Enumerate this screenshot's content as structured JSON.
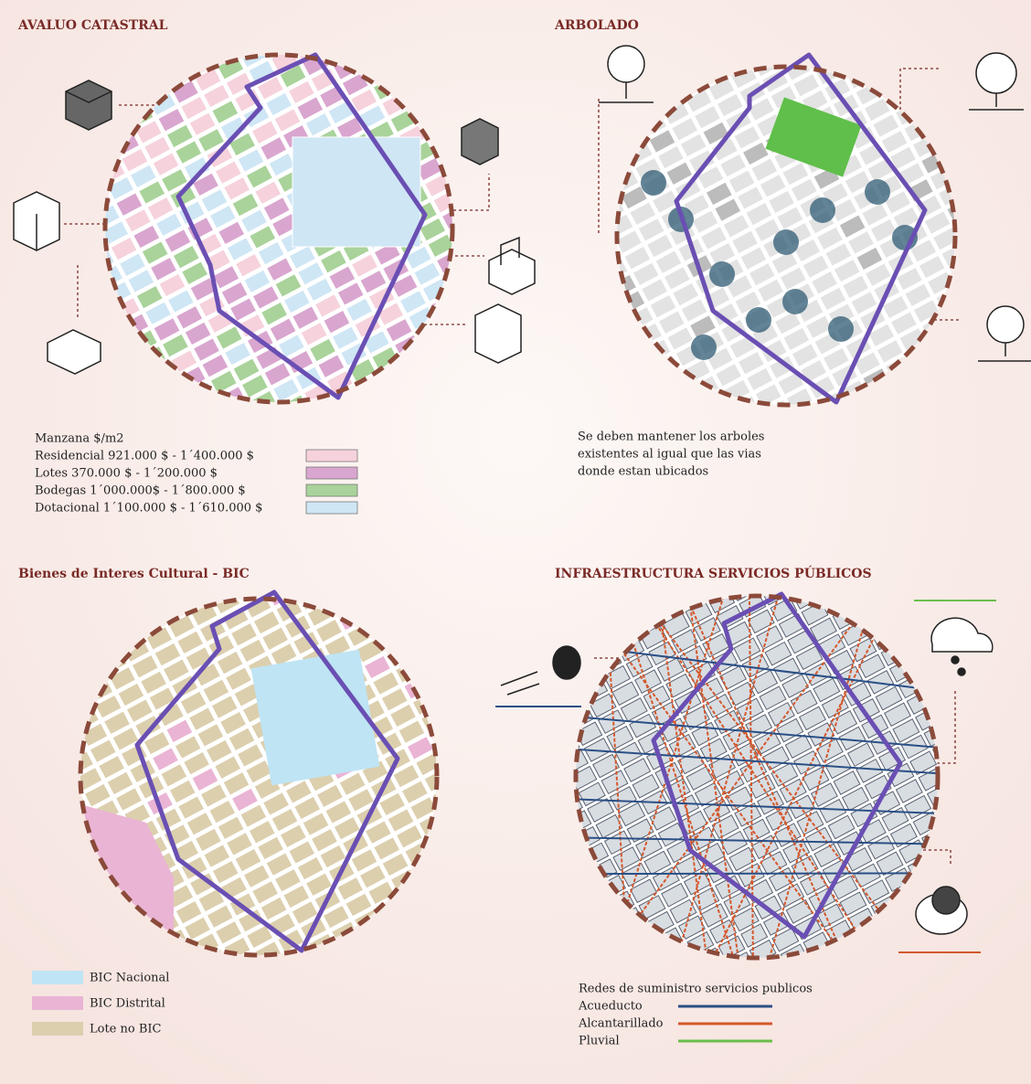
{
  "panels": [
    {
      "title": "AVALUO CATASTRAL",
      "legend_title": "Manzana $/m2",
      "legend": [
        {
          "label": "Residencial 921.000 $ - 1´400.000 $",
          "color": "#f6d2dc"
        },
        {
          "label": "Lotes 370.000 $ - 1´200.000 $",
          "color": "#d9a6cf"
        },
        {
          "label": "Bodegas 1´000.000$ - 1´800.000 $",
          "color": "#a9d39a"
        },
        {
          "label": "Dotacional 1´100.000 $ - 1´610.000 $",
          "color": "#cfe6f5"
        }
      ]
    },
    {
      "title": "ARBOLADO",
      "note": [
        "Se deben mantener los arboles",
        "existentes al igual que las vias",
        "donde estan ubicados"
      ]
    },
    {
      "title": "Bienes de Interes Cultural - BIC",
      "legend": [
        {
          "label": "BIC Nacional",
          "color": "#bfe4f4"
        },
        {
          "label": "BIC Distrital",
          "color": "#eab4d4"
        },
        {
          "label": "Lote no BIC",
          "color": "#dccfae"
        }
      ]
    },
    {
      "title": "INFRAESTRUCTURA SERVICIOS PÚBLICOS",
      "legend_title": "Redes de suministro servicios publicos",
      "legend": [
        {
          "label": "Acueducto",
          "color": "#2a4f86"
        },
        {
          "label": "Alcantarillado",
          "color": "#d4582c"
        },
        {
          "label": "Pluvial",
          "color": "#6abf4b"
        }
      ]
    }
  ]
}
